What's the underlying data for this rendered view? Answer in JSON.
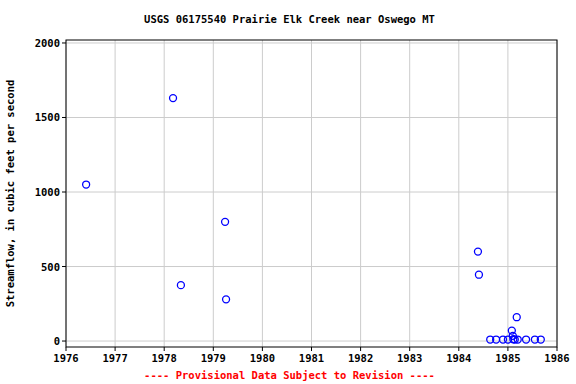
{
  "chart_data": {
    "type": "scatter",
    "title": "USGS 06175540 Prairie Elk Creek near Oswego MT",
    "y_label": "Streamflow, in cubic feet per second",
    "caption": "---- Provisional Data Subject to Revision ----",
    "x": [
      1976.41,
      1978.18,
      1978.34,
      1979.24,
      1979.26,
      1984.39,
      1984.41,
      1984.64,
      1984.76,
      1984.9,
      1985.0,
      1985.08,
      1985.1,
      1985.11,
      1985.14,
      1985.18,
      1985.2,
      1985.37,
      1985.55,
      1985.67
    ],
    "values": [
      1050,
      1630,
      375,
      800,
      280,
      600,
      445,
      10,
      10,
      10,
      10,
      70,
      35,
      12,
      10,
      160,
      10,
      10,
      10,
      10
    ],
    "color": "#0000ff",
    "marker": "open-circle",
    "xlim": [
      1976,
      1986
    ],
    "xticks": [
      1976,
      1977,
      1978,
      1979,
      1980,
      1981,
      1982,
      1983,
      1984,
      1985,
      1986
    ],
    "ylim": [
      -40,
      2020
    ],
    "yticks": [
      0,
      500,
      1000,
      1500,
      2000
    ],
    "grid": true
  }
}
